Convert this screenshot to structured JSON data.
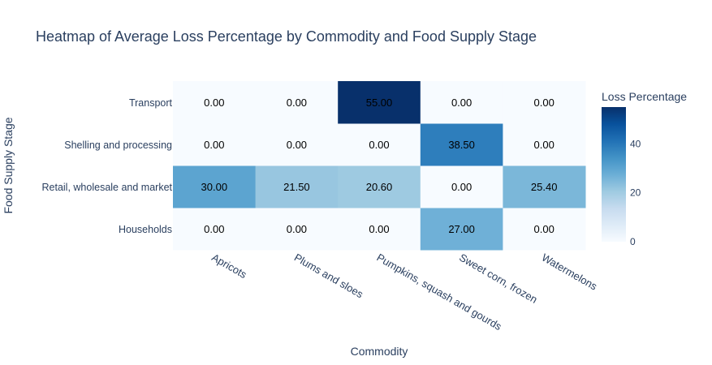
{
  "chart_data": {
    "type": "heatmap",
    "title": "Heatmap of Average Loss Percentage by Commodity and Food Supply Stage",
    "xlabel": "Commodity",
    "ylabel": "Food Supply Stage",
    "x_categories": [
      "Apricots",
      "Plums and sloes",
      "Pumpkins, squash and gourds",
      "Sweet corn, frozen",
      "Watermelons"
    ],
    "y_categories": [
      "Households",
      "Retail, wholesale and market",
      "Shelling and processing",
      "Transport"
    ],
    "values": [
      [
        0.0,
        0.0,
        0.0,
        27.0,
        0.0
      ],
      [
        30.0,
        21.5,
        20.6,
        0.0,
        25.4
      ],
      [
        0.0,
        0.0,
        0.0,
        38.5,
        0.0
      ],
      [
        0.0,
        0.0,
        55.0,
        0.0,
        0.0
      ]
    ],
    "value_labels": [
      [
        "0.00",
        "0.00",
        "0.00",
        "27.00",
        "0.00"
      ],
      [
        "30.00",
        "21.50",
        "20.60",
        "0.00",
        "25.40"
      ],
      [
        "0.00",
        "0.00",
        "0.00",
        "38.50",
        "0.00"
      ],
      [
        "0.00",
        "0.00",
        "55.00",
        "0.00",
        "0.00"
      ]
    ],
    "colorscale": "Blues",
    "colorbar": {
      "title": "Loss Percentage",
      "range": [
        0,
        55
      ],
      "ticks": [
        0,
        20,
        40
      ],
      "tick_labels": [
        "0",
        "20",
        "40"
      ]
    },
    "text_color": "#000000",
    "title_color": "#2a3f5f"
  }
}
